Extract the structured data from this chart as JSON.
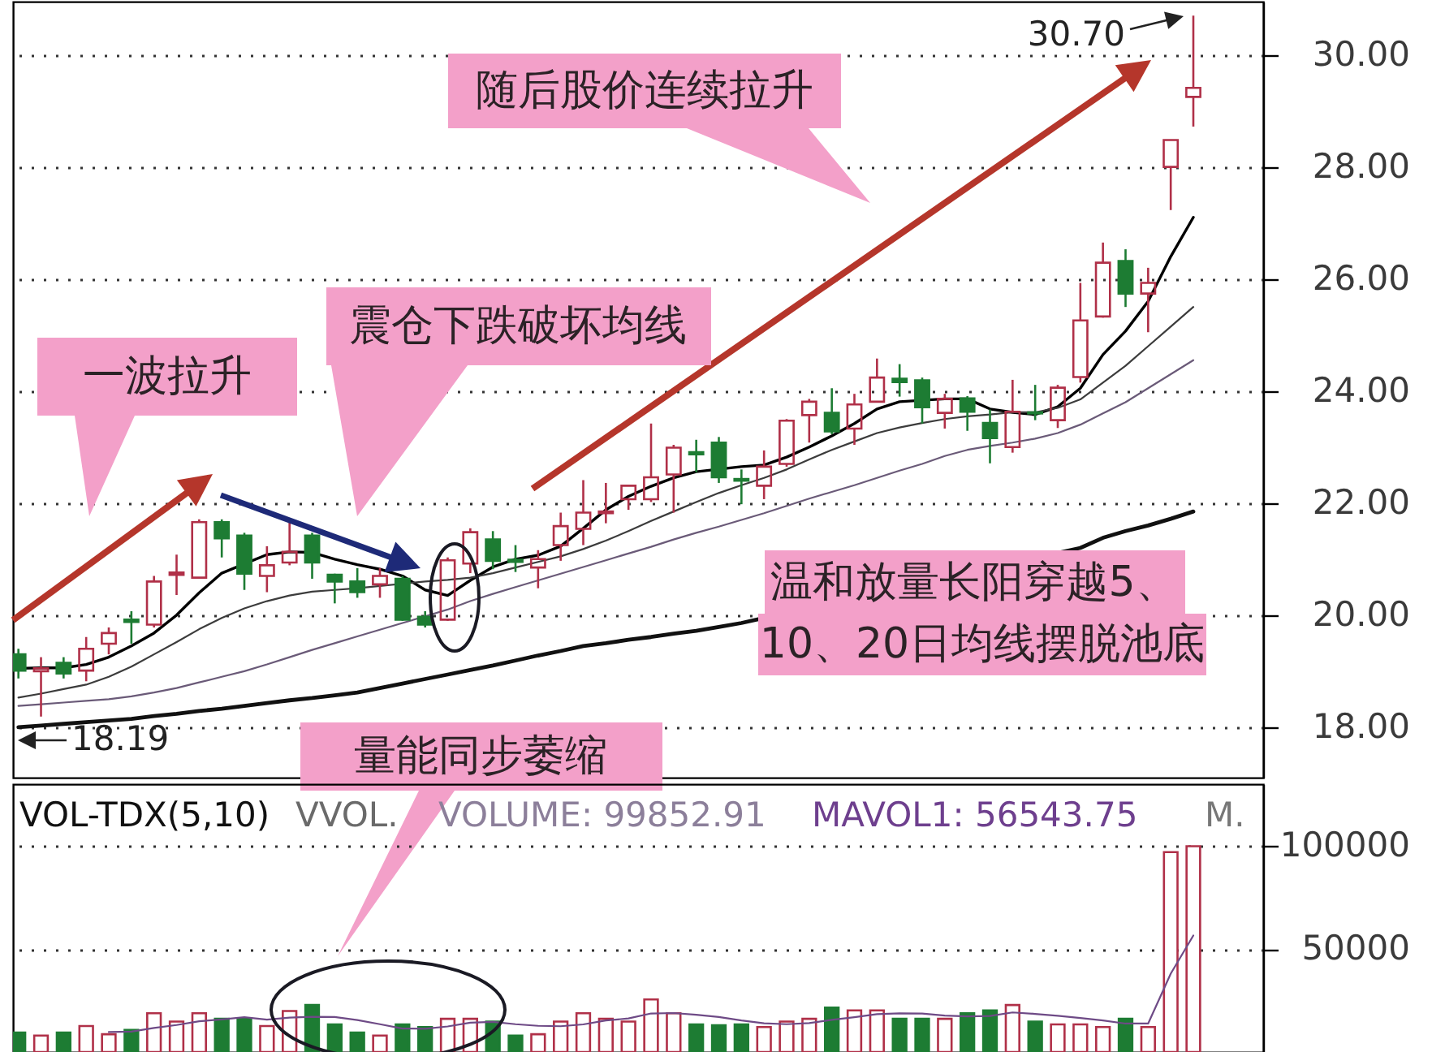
{
  "chart_data": [
    {
      "type": "candlestick",
      "categories": [
        null,
        null,
        null,
        null,
        null,
        null,
        null,
        null,
        null,
        null,
        null,
        null,
        null,
        null,
        null,
        null,
        null,
        null,
        null,
        null,
        null,
        null,
        null,
        null,
        null,
        null,
        null,
        null,
        null,
        null,
        null,
        null,
        null,
        null,
        null,
        null,
        null,
        null,
        null,
        null,
        null,
        null,
        null,
        null,
        null,
        null,
        null,
        null,
        null,
        null,
        null,
        null,
        null
      ],
      "ohlc": [
        [
          19.3,
          19.4,
          18.87,
          19.01
        ],
        [
          19.0,
          19.25,
          18.19,
          19.05
        ],
        [
          19.15,
          19.25,
          18.87,
          18.96
        ],
        [
          19.01,
          19.61,
          18.82,
          19.4
        ],
        [
          19.49,
          19.78,
          19.3,
          19.68
        ],
        [
          19.92,
          20.07,
          19.49,
          19.88
        ],
        [
          19.83,
          20.7,
          19.78,
          20.6
        ],
        [
          20.72,
          21.08,
          20.36,
          20.76
        ],
        [
          20.67,
          21.71,
          20.65,
          21.66
        ],
        [
          21.66,
          21.71,
          21.03,
          21.37
        ],
        [
          21.42,
          21.47,
          20.45,
          20.74
        ],
        [
          20.7,
          21.23,
          20.41,
          20.89
        ],
        [
          20.94,
          21.71,
          20.89,
          21.13
        ],
        [
          21.42,
          21.47,
          20.65,
          20.94
        ],
        [
          20.72,
          20.74,
          20.21,
          20.6
        ],
        [
          20.6,
          20.84,
          20.31,
          20.41
        ],
        [
          20.55,
          20.84,
          20.31,
          20.7
        ],
        [
          20.65,
          20.7,
          19.9,
          19.92
        ],
        [
          19.97,
          20.07,
          19.78,
          19.83
        ],
        [
          19.92,
          21.03,
          19.9,
          20.98
        ],
        [
          20.92,
          21.55,
          20.75,
          21.48
        ],
        [
          21.35,
          21.5,
          20.82,
          20.97
        ],
        [
          20.99,
          21.25,
          20.77,
          20.95
        ],
        [
          20.85,
          21.16,
          20.48,
          21.0
        ],
        [
          21.25,
          21.83,
          20.97,
          21.59
        ],
        [
          21.54,
          22.41,
          21.25,
          21.83
        ],
        [
          21.82,
          22.36,
          21.64,
          21.85
        ],
        [
          22.07,
          22.33,
          21.88,
          22.31
        ],
        [
          22.07,
          23.42,
          22.02,
          22.46
        ],
        [
          22.51,
          23.04,
          21.83,
          22.99
        ],
        [
          22.91,
          23.13,
          22.55,
          22.87
        ],
        [
          23.08,
          23.18,
          22.36,
          22.46
        ],
        [
          22.43,
          22.6,
          21.98,
          22.4
        ],
        [
          22.31,
          22.94,
          22.07,
          22.65
        ],
        [
          22.7,
          23.5,
          22.65,
          23.47
        ],
        [
          23.57,
          23.86,
          23.08,
          23.81
        ],
        [
          23.61,
          24.05,
          23.23,
          23.28
        ],
        [
          23.33,
          23.95,
          23.04,
          23.76
        ],
        [
          23.81,
          24.58,
          23.81,
          24.24
        ],
        [
          24.22,
          24.48,
          23.9,
          24.16
        ],
        [
          24.19,
          24.24,
          23.42,
          23.71
        ],
        [
          23.61,
          23.95,
          23.33,
          23.86
        ],
        [
          23.87,
          23.91,
          23.29,
          23.63
        ],
        [
          23.43,
          23.67,
          22.71,
          23.16
        ],
        [
          23.0,
          24.2,
          22.9,
          23.63
        ],
        [
          23.62,
          24.11,
          23.48,
          23.6
        ],
        [
          23.48,
          24.11,
          23.34,
          24.06
        ],
        [
          24.25,
          25.93,
          24.15,
          25.26
        ],
        [
          25.33,
          26.65,
          25.31,
          26.29
        ],
        [
          26.32,
          26.53,
          25.5,
          25.74
        ],
        [
          25.74,
          26.2,
          25.05,
          25.93
        ],
        [
          28.0,
          28.48,
          27.23,
          28.48
        ],
        [
          29.25,
          30.7,
          28.72,
          29.41
        ]
      ],
      "colors": [
        "#1d7c33",
        "#b03048",
        "#1d7c33",
        "#b03048",
        "#b03048",
        "#1d7c33",
        "#b03048",
        "#b03048",
        "#b03048",
        "#1d7c33",
        "#1d7c33",
        "#b03048",
        "#b03048",
        "#1d7c33",
        "#1d7c33",
        "#1d7c33",
        "#b03048",
        "#1d7c33",
        "#1d7c33",
        "#b03048",
        "#b03048",
        "#1d7c33",
        "#1d7c33",
        "#b03048",
        "#b03048",
        "#b03048",
        "#b03048",
        "#b03048",
        "#b03048",
        "#b03048",
        "#1d7c33",
        "#1d7c33",
        "#1d7c33",
        "#b03048",
        "#b03048",
        "#b03048",
        "#1d7c33",
        "#b03048",
        "#b03048",
        "#1d7c33",
        "#1d7c33",
        "#b03048",
        "#1d7c33",
        "#1d7c33",
        "#b03048",
        "#1d7c33",
        "#b03048",
        "#b03048",
        "#b03048",
        "#1d7c33",
        "#b03048",
        "#b03048",
        "#b03048"
      ],
      "series": [
        {
          "type": "line",
          "color": "#000000",
          "values": [
            19.05,
            19.06,
            19.06,
            19.12,
            19.25,
            19.45,
            19.68,
            20.0,
            20.4,
            20.75,
            null,
            21.08,
            21.13,
            21.12,
            21.0,
            20.9,
            20.82,
            20.7,
            20.45,
            20.35,
            20.62,
            20.86,
            21.0,
            21.07,
            21.23,
            21.55,
            21.88,
            22.12,
            22.3,
            22.45,
            22.56,
            null,
            22.65,
            22.68,
            22.82,
            23.0,
            23.2,
            23.42,
            23.68,
            23.81,
            null,
            23.86,
            23.86,
            23.68,
            23.62,
            23.58,
            23.72,
            24.05,
            24.65,
            25.07,
            25.6,
            26.4,
            27.1
          ]
        },
        {
          "type": "line",
          "color": "#3c3c3c",
          "values": [
            18.53,
            18.6,
            18.68,
            18.76,
            18.9,
            19.08,
            19.3,
            19.52,
            19.75,
            19.95,
            20.12,
            20.25,
            20.35,
            20.42,
            20.45,
            20.48,
            20.52,
            null,
            20.6,
            20.63,
            20.67,
            20.75,
            20.85,
            20.95,
            21.05,
            21.18,
            21.33,
            21.5,
            21.68,
            21.85,
            22.02,
            22.18,
            22.32,
            22.45,
            22.6,
            22.78,
            22.95,
            23.1,
            23.25,
            23.35,
            23.43,
            23.5,
            23.55,
            23.58,
            23.62,
            23.62,
            23.7,
            23.85,
            24.15,
            24.45,
            24.8,
            25.15,
            25.5
          ]
        },
        {
          "type": "line",
          "color": "#6a5a78",
          "values": [
            18.38,
            18.41,
            18.44,
            18.47,
            18.5,
            18.55,
            18.62,
            18.7,
            18.8,
            18.9,
            19.0,
            19.12,
            19.25,
            19.38,
            19.5,
            19.62,
            19.74,
            19.86,
            19.98,
            20.1,
            20.25,
            20.38,
            20.5,
            20.62,
            20.74,
            20.86,
            20.98,
            21.1,
            21.22,
            21.35,
            21.47,
            21.58,
            21.7,
            21.82,
            21.95,
            22.08,
            22.2,
            22.32,
            22.45,
            22.58,
            22.7,
            22.84,
            22.95,
            23.02,
            23.08,
            23.15,
            23.25,
            23.4,
            23.6,
            23.8,
            24.05,
            24.3,
            24.55
          ]
        },
        {
          "type": "line",
          "color": "#111111",
          "values": [
            18.0,
            18.03,
            18.06,
            18.09,
            18.12,
            18.15,
            18.2,
            18.24,
            18.29,
            18.33,
            18.38,
            18.43,
            18.48,
            18.52,
            18.57,
            18.62,
            18.7,
            18.78,
            18.86,
            18.94,
            19.02,
            19.1,
            19.19,
            19.28,
            19.36,
            19.45,
            19.5,
            19.56,
            19.61,
            19.67,
            19.72,
            19.79,
            19.86,
            null,
            null,
            null,
            null,
            null,
            null,
            null,
            null,
            null,
            null,
            null,
            null,
            null,
            null,
            21.2,
            21.38,
            21.5,
            21.6,
            21.72,
            21.85
          ]
        }
      ],
      "ylim": [
        17.1,
        30.95
      ],
      "yticks": [
        {
          "value": 18,
          "label": "18.00"
        },
        {
          "value": 20,
          "label": "20.00"
        },
        {
          "value": 22,
          "label": "22.00"
        },
        {
          "value": 24,
          "label": "24.00"
        },
        {
          "value": 26,
          "label": "26.00"
        },
        {
          "value": 28,
          "label": "28.00"
        },
        {
          "value": 30,
          "label": "30.00"
        }
      ],
      "grid": "y",
      "tick_labels": "y",
      "annotations": [
        "随后股价连续拉升",
        "震仓下跌破坏均线",
        "一波拉升",
        "温和放量长阳穿越5、10、20日均线摆脱池底",
        "量能同步萎缩",
        "30.70",
        "18.19"
      ]
    },
    {
      "type": "bar",
      "categories": [
        null,
        null,
        null,
        null,
        null,
        null,
        null,
        null,
        null,
        null,
        null,
        null,
        null,
        null,
        null,
        null,
        null,
        null,
        null,
        null,
        null,
        null,
        null,
        null,
        null,
        null,
        null,
        null,
        null,
        null,
        null,
        null,
        null,
        null,
        null,
        null,
        null,
        null,
        null,
        null,
        null,
        null,
        null,
        null,
        null,
        null,
        null,
        null,
        null,
        null,
        null,
        null,
        null
      ],
      "series": [
        {
          "type": "bar",
          "colors": [
            "#1d7c33",
            "#b03048",
            "#1d7c33",
            "#b03048",
            "#b03048",
            "#1d7c33",
            "#b03048",
            "#b03048",
            "#b03048",
            "#1d7c33",
            "#1d7c33",
            "#b03048",
            "#b03048",
            "#1d7c33",
            "#1d7c33",
            "#1d7c33",
            "#b03048",
            "#1d7c33",
            "#1d7c33",
            "#b03048",
            "#b03048",
            "#1d7c33",
            "#1d7c33",
            "#b03048",
            "#b03048",
            "#b03048",
            "#b03048",
            "#b03048",
            "#b03048",
            "#b03048",
            "#1d7c33",
            "#1d7c33",
            "#1d7c33",
            "#b03048",
            "#b03048",
            "#b03048",
            "#1d7c33",
            "#b03048",
            "#b03048",
            "#1d7c33",
            "#1d7c33",
            "#b03048",
            "#1d7c33",
            "#1d7c33",
            "#b03048",
            "#1d7c33",
            "#b03048",
            "#b03048",
            "#b03048",
            "#1d7c33",
            "#b03048",
            "#b03048",
            "#b03048"
          ],
          "values": [
            9400,
            8000,
            9400,
            12600,
            8600,
            10700,
            18800,
            14800,
            18800,
            16100,
            16100,
            12600,
            19900,
            22800,
            13400,
            9400,
            8000,
            13400,
            12100,
            16100,
            16100,
            14800,
            8000,
            8600,
            14800,
            18800,
            16100,
            14800,
            25500,
            18800,
            13400,
            13000,
            13400,
            12100,
            14800,
            16100,
            21500,
            20200,
            20200,
            16100,
            16100,
            16100,
            18800,
            20200,
            22800,
            14800,
            13400,
            13400,
            12100,
            16100,
            12100,
            97000,
            99852.91
          ]
        },
        {
          "type": "line",
          "color": "#6e4a86",
          "values": [
            null,
            null,
            null,
            null,
            9700,
            9900,
            11700,
            13100,
            14900,
            15800,
            16900,
            15700,
            16700,
            17100,
            17000,
            15500,
            13500,
            11400,
            11300,
            12400,
            14200,
            14600,
            13500,
            12700,
            12500,
            13400,
            15300,
            16300,
            18700,
            18900,
            18100,
            17000,
            15300,
            13900,
            13500,
            14000,
            15600,
            16900,
            18400,
            18800,
            18700,
            17700,
            17300,
            17500,
            19200,
            18500,
            17600,
            16500,
            15300,
            13800,
            13800,
            38000,
            56543.75
          ]
        }
      ],
      "ylim": [
        0,
        130000
      ],
      "yticks": [
        50000,
        100000
      ],
      "grid": "y",
      "tick_labels": "y",
      "annotations": [
        "VOL-TDX(5,10)",
        "VVOL.",
        "VOLUME: 99852.91",
        "MAVOL1: 56543.75",
        "M."
      ]
    }
  ]
}
